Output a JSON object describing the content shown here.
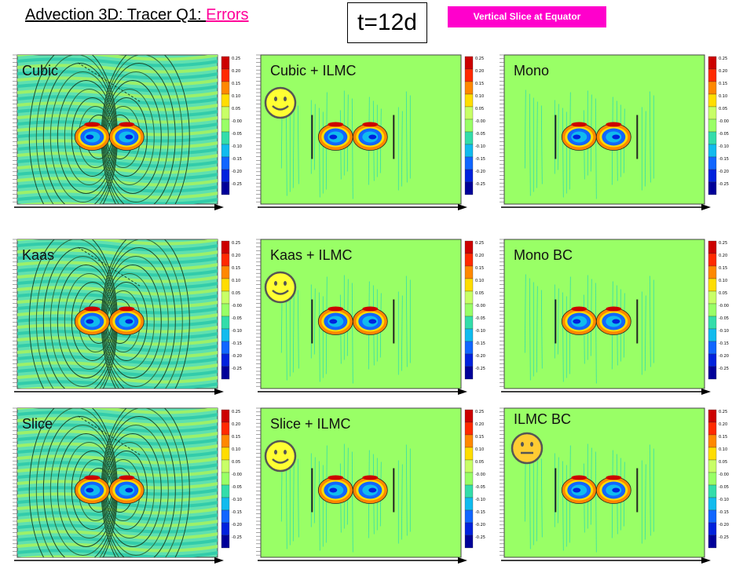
{
  "header": {
    "title_prefix": "Advection 3D: Tracer Q1: ",
    "title_highlight": "Errors",
    "time_label": "t=12d",
    "badge_label": "Vertical Slice at Equator"
  },
  "colors": {
    "accent": "#ff0099",
    "badge_bg": "#ff00cc",
    "field_green": "#99ff66",
    "field_cyan": "#5fe0b0",
    "smiley_yellow": "#ffff33",
    "smiley_orange": "#ffcc33"
  },
  "colorbar": {
    "ticks": [
      "0.25",
      "0.20",
      "0.15",
      "0.10",
      "0.05",
      "-0.00",
      "-0.05",
      "-0.10",
      "-0.15",
      "-0.20",
      "-0.25"
    ],
    "colors": [
      "#cc0000",
      "#ff2a00",
      "#ff8800",
      "#ffdd00",
      "#c8ff66",
      "#99ff66",
      "#33ddaa",
      "#11bbee",
      "#1166ff",
      "#0022dd",
      "#000099"
    ]
  },
  "panels": [
    {
      "label": "Cubic",
      "style": "wide",
      "smiley": ""
    },
    {
      "label": "Cubic + ILMC",
      "style": "narrow",
      "smiley": "happy"
    },
    {
      "label": "Mono",
      "style": "narrow",
      "smiley": ""
    },
    {
      "label": "Kaas",
      "style": "wide",
      "smiley": ""
    },
    {
      "label": "Kaas + ILMC",
      "style": "narrow",
      "smiley": "happy"
    },
    {
      "label": "Mono BC",
      "style": "narrow",
      "smiley": ""
    },
    {
      "label": "Slice",
      "style": "wide",
      "smiley": ""
    },
    {
      "label": "Slice + ILMC",
      "style": "narrow",
      "smiley": "happy"
    },
    {
      "label": "ILMC BC",
      "style": "narrow",
      "smiley": "neutral"
    }
  ]
}
